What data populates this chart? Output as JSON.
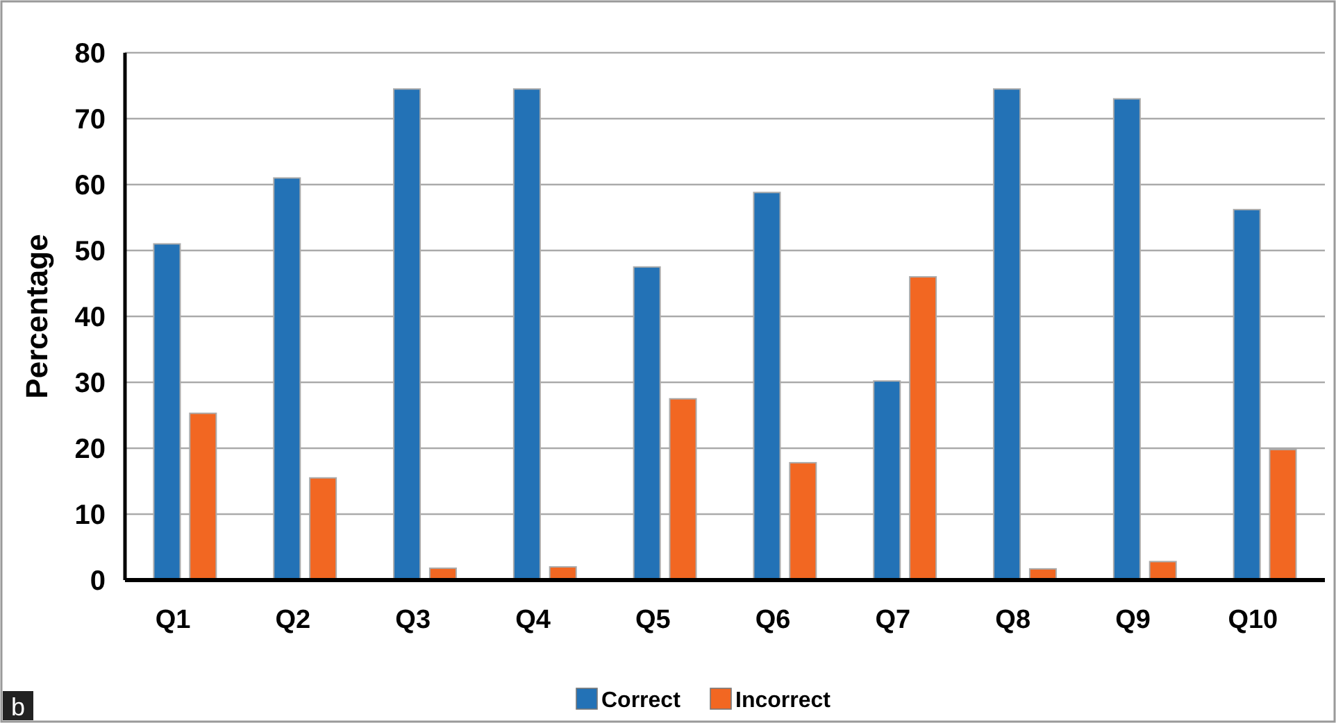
{
  "chart_data": {
    "type": "bar",
    "ylabel": "Percentage",
    "categories": [
      "Q1",
      "Q2",
      "Q3",
      "Q4",
      "Q5",
      "Q6",
      "Q7",
      "Q8",
      "Q9",
      "Q10"
    ],
    "series": [
      {
        "name": "Correct",
        "color": "#2372b6",
        "values": [
          51,
          61,
          74.5,
          74.5,
          47.5,
          58.8,
          30.2,
          74.5,
          73,
          56.2
        ]
      },
      {
        "name": "Incorrect",
        "color": "#f26722",
        "values": [
          25.3,
          15.5,
          1.8,
          2,
          27.5,
          17.8,
          46,
          1.7,
          2.8,
          19.8
        ]
      }
    ],
    "ylim": [
      0,
      80
    ],
    "yticks": [
      0,
      10,
      20,
      30,
      40,
      50,
      60,
      70,
      80
    ],
    "grid": "y",
    "legend": "bottom",
    "annotations": [
      "b"
    ]
  }
}
